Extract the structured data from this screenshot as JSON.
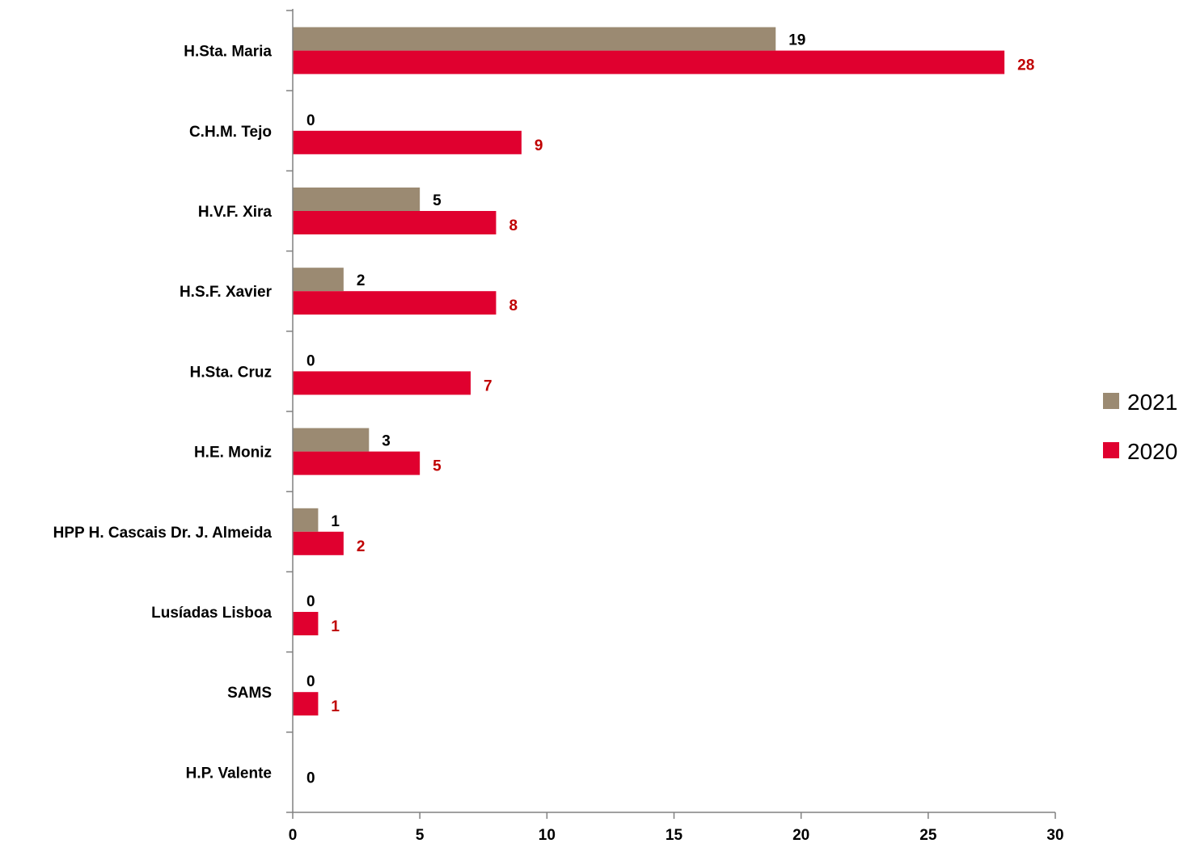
{
  "chart_data": {
    "type": "bar",
    "orientation": "horizontal",
    "categories": [
      "H.Sta. Maria",
      "C.H.M. Tejo",
      "H.V.F. Xira",
      "H.S.F. Xavier",
      "H.Sta. Cruz",
      "H.E. Moniz",
      "HPP H. Cascais Dr. J. Almeida",
      "Lusíadas Lisboa",
      "SAMS",
      "H.P. Valente"
    ],
    "series": [
      {
        "name": "2021",
        "values": [
          19,
          0,
          5,
          2,
          0,
          3,
          1,
          0,
          0,
          0
        ],
        "color": "#9b8a72",
        "label_color": "#000000"
      },
      {
        "name": "2020",
        "values": [
          28,
          9,
          8,
          8,
          7,
          5,
          2,
          1,
          1,
          null
        ],
        "color": "#e0002f",
        "label_color": "#c00000"
      }
    ],
    "xlim": [
      0,
      30
    ],
    "xticks": [
      "0",
      "5",
      "10",
      "15",
      "20",
      "25",
      "30"
    ],
    "legend_placement": "right",
    "grid": false
  }
}
